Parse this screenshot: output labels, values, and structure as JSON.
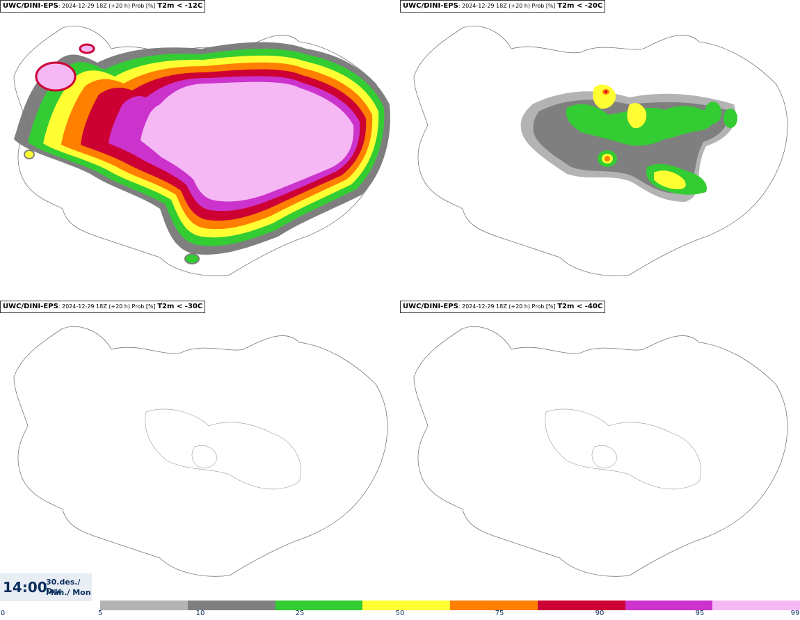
{
  "panels": [
    {
      "id": "p1",
      "model": "UWC/DINI-EPS",
      "run_info": ": 2024-12-29 18Z (+20 h) Prob [%]",
      "threshold": "T2m < -12C"
    },
    {
      "id": "p2",
      "model": "UWC/DINI-EPS",
      "run_info": ": 2024-12-29 18Z (+20 h) Prob [%]",
      "threshold": "T2m < -20C"
    },
    {
      "id": "p3",
      "model": "UWC/DINI-EPS",
      "run_info": ": 2024-12-29 18Z (+20 h) Prob [%]",
      "threshold": "T2m < -30C"
    },
    {
      "id": "p4",
      "model": "UWC/DINI-EPS",
      "run_info": ": 2024-12-29 18Z (+20 h) Prob [%]",
      "threshold": "T2m < -40C"
    }
  ],
  "valid_time": {
    "time": "14:00",
    "date_line": "30.des./ Dec",
    "day_line": "Mán./ Mon"
  },
  "legend": {
    "labels": [
      "0",
      "5",
      "10",
      "25",
      "50",
      "75",
      "90",
      "95",
      "99"
    ],
    "colors": [
      "#b3b3b3",
      "#7f7f7f",
      "#33cc33",
      "#ffff33",
      "#ff7f00",
      "#cc0033",
      "#cc33cc",
      "#f5b8f5"
    ]
  }
}
